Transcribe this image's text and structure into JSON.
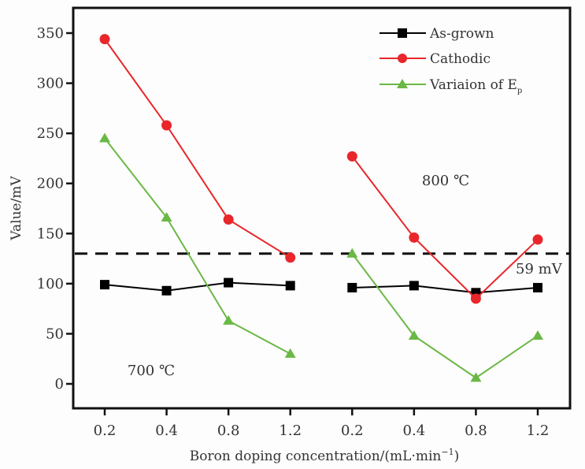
{
  "chart_data": {
    "type": "line",
    "title": "",
    "xlabel": "Boron doping concentration/(mL·min",
    "xlabel_sup": "−1",
    "xlabel_end": ")",
    "ylabel": "Value/mV",
    "ylim": [
      -25,
      375
    ],
    "yticks": [
      0,
      50,
      100,
      150,
      200,
      250,
      300,
      350
    ],
    "categories": [
      "0.2",
      "0.4",
      "0.8",
      "1.2",
      "0.2",
      "0.4",
      "0.8",
      "1.2"
    ],
    "groups": [
      {
        "label": "700 ℃",
        "indices": [
          0,
          1,
          2,
          3
        ]
      },
      {
        "label": "800 ℃",
        "indices": [
          4,
          5,
          6,
          7
        ]
      }
    ],
    "series": [
      {
        "name": "As-grown",
        "color": "#000000",
        "marker": "square",
        "values": [
          99,
          93,
          101,
          98,
          96,
          98,
          91,
          96
        ]
      },
      {
        "name": "Cathodic",
        "color": "#e8262b",
        "marker": "circle",
        "values": [
          344,
          258,
          164,
          126,
          227,
          146,
          85,
          144
        ]
      },
      {
        "name": "Variaion of E",
        "name_sub": "p",
        "color": "#6ab845",
        "marker": "triangle",
        "values": [
          245,
          166,
          63,
          30,
          130,
          48,
          6,
          48
        ]
      }
    ],
    "reference_line": {
      "value": 130,
      "label": "59 mV",
      "style": "dashed"
    },
    "legend_position": "top-right",
    "grid": false
  }
}
